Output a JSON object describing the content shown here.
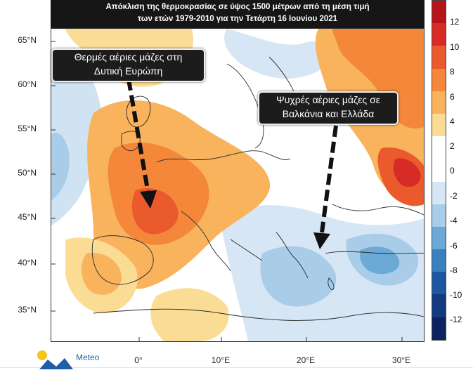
{
  "title": {
    "line1": "Απόκλιση της θερμοκρασίας σε ύψος 1500 μέτρων από τη μέση τιμή",
    "line2": "των ετών 1979-2010 για την Τετάρτη 16 Ιουνίου 2021"
  },
  "annotations": {
    "west": {
      "line1": "Θερμές αέριες μάζες στη",
      "line2": "Δυτική Ευρώπη"
    },
    "east": {
      "line1": "Ψυχρές αέριες μάζες σε",
      "line2": "Βαλκάνια και Ελλάδα"
    }
  },
  "latitude_labels": [
    "65°N",
    "60°N",
    "55°N",
    "50°N",
    "45°N",
    "40°N",
    "35°N"
  ],
  "longitude_labels": [
    "0°",
    "10°E",
    "20°E",
    "30°E"
  ],
  "colorbar": {
    "labels": [
      "12",
      "10",
      "8",
      "6",
      "4",
      "2",
      "0",
      "-2",
      "-4",
      "-6",
      "-8",
      "-10",
      "-12"
    ],
    "colors": [
      "#b5141b",
      "#d62b26",
      "#ea5a2c",
      "#f4873a",
      "#f8b35c",
      "#fbdc94",
      "#ffffff",
      "#ffffff",
      "#d6e6f4",
      "#a9cde9",
      "#6ba9d6",
      "#3a7fbe",
      "#1f56a0",
      "#123a7e",
      "#0b2460"
    ]
  },
  "logo": {
    "text": "Meteo"
  }
}
